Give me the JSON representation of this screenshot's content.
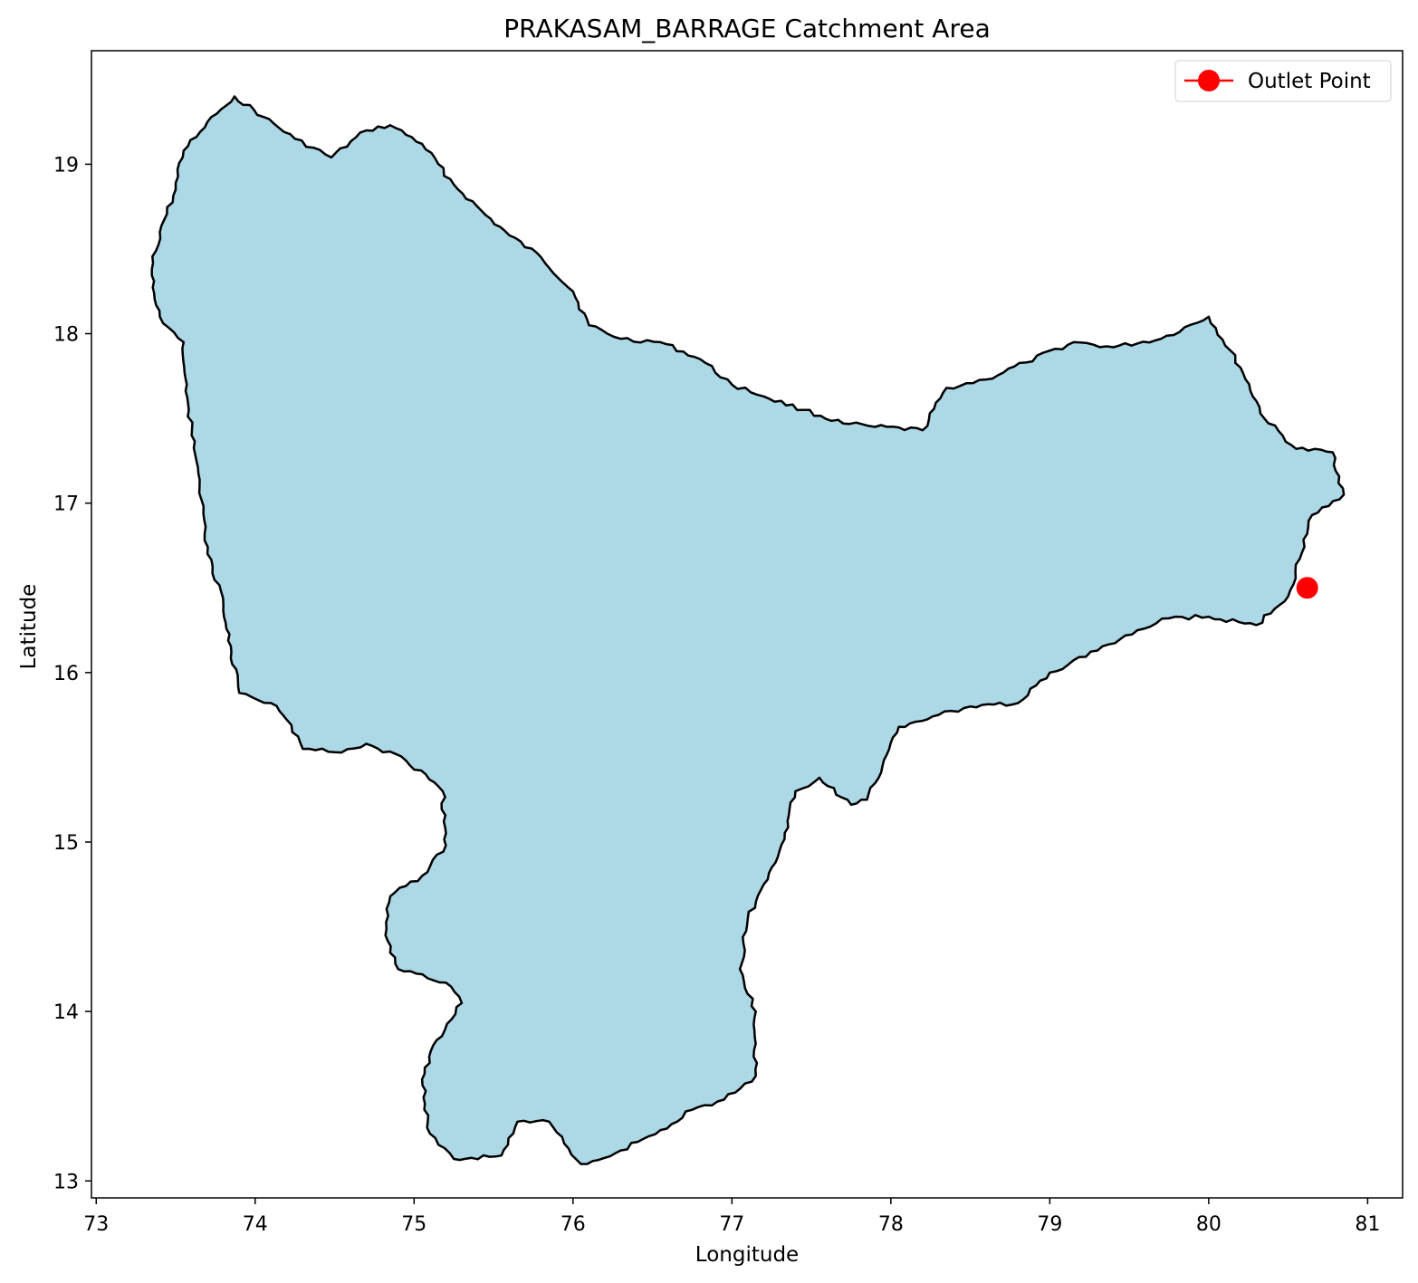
{
  "chart_data": {
    "type": "map",
    "title": "PRAKASAM_BARRAGE Catchment Area",
    "xlabel": "Longitude",
    "ylabel": "Latitude",
    "xlim": [
      72.97,
      81.22
    ],
    "ylim": [
      12.9,
      19.67
    ],
    "x_ticks": [
      73,
      74,
      75,
      76,
      77,
      78,
      79,
      80,
      81
    ],
    "y_ticks": [
      13,
      14,
      15,
      16,
      17,
      18,
      19
    ],
    "grid": false,
    "legend_position": "top-right",
    "colors": {
      "catchment_fill": "#add8e6",
      "catchment_edge": "#000000",
      "outlet": "#ff0000"
    },
    "outlet": {
      "name": "Outlet Point",
      "lon": 80.62,
      "lat": 16.5
    },
    "catchment_boundary": [
      [
        73.87,
        19.4
      ],
      [
        74.05,
        19.28
      ],
      [
        74.25,
        19.15
      ],
      [
        74.48,
        19.04
      ],
      [
        74.7,
        19.2
      ],
      [
        74.85,
        19.23
      ],
      [
        75.05,
        19.12
      ],
      [
        75.25,
        18.88
      ],
      [
        75.45,
        18.7
      ],
      [
        75.6,
        18.58
      ],
      [
        75.8,
        18.45
      ],
      [
        76.0,
        18.25
      ],
      [
        76.1,
        18.05
      ],
      [
        76.3,
        17.97
      ],
      [
        76.55,
        17.95
      ],
      [
        76.8,
        17.85
      ],
      [
        77.0,
        17.7
      ],
      [
        77.2,
        17.63
      ],
      [
        77.45,
        17.55
      ],
      [
        77.7,
        17.47
      ],
      [
        77.9,
        17.45
      ],
      [
        78.2,
        17.43
      ],
      [
        78.35,
        17.68
      ],
      [
        78.6,
        17.73
      ],
      [
        78.85,
        17.83
      ],
      [
        79.15,
        17.95
      ],
      [
        79.4,
        17.92
      ],
      [
        79.7,
        17.97
      ],
      [
        80.0,
        18.1
      ],
      [
        80.2,
        17.8
      ],
      [
        80.35,
        17.5
      ],
      [
        80.55,
        17.32
      ],
      [
        80.78,
        17.3
      ],
      [
        80.85,
        17.05
      ],
      [
        80.65,
        16.93
      ],
      [
        80.5,
        16.45
      ],
      [
        80.3,
        16.28
      ],
      [
        80.0,
        16.33
      ],
      [
        79.75,
        16.32
      ],
      [
        79.55,
        16.25
      ],
      [
        79.3,
        16.13
      ],
      [
        79.0,
        16.0
      ],
      [
        78.8,
        15.82
      ],
      [
        78.5,
        15.8
      ],
      [
        78.3,
        15.75
      ],
      [
        78.05,
        15.68
      ],
      [
        77.85,
        15.25
      ],
      [
        77.75,
        15.22
      ],
      [
        77.55,
        15.38
      ],
      [
        77.4,
        15.3
      ],
      [
        77.3,
        14.95
      ],
      [
        77.2,
        14.75
      ],
      [
        77.1,
        14.55
      ],
      [
        77.05,
        14.25
      ],
      [
        77.15,
        14.0
      ],
      [
        77.15,
        13.62
      ],
      [
        76.95,
        13.48
      ],
      [
        76.75,
        13.42
      ],
      [
        76.55,
        13.3
      ],
      [
        76.3,
        13.18
      ],
      [
        76.05,
        13.1
      ],
      [
        75.85,
        13.35
      ],
      [
        75.65,
        13.35
      ],
      [
        75.55,
        13.15
      ],
      [
        75.25,
        13.13
      ],
      [
        75.1,
        13.28
      ],
      [
        75.05,
        13.6
      ],
      [
        75.12,
        13.8
      ],
      [
        75.3,
        14.05
      ],
      [
        75.2,
        14.17
      ],
      [
        74.9,
        14.25
      ],
      [
        74.82,
        14.45
      ],
      [
        74.85,
        14.68
      ],
      [
        75.05,
        14.8
      ],
      [
        75.2,
        14.98
      ],
      [
        75.18,
        15.3
      ],
      [
        74.95,
        15.48
      ],
      [
        74.7,
        15.58
      ],
      [
        74.5,
        15.53
      ],
      [
        74.3,
        15.55
      ],
      [
        74.2,
        15.72
      ],
      [
        74.1,
        15.82
      ],
      [
        73.9,
        15.88
      ],
      [
        73.85,
        16.12
      ],
      [
        73.8,
        16.4
      ],
      [
        73.7,
        16.7
      ],
      [
        73.68,
        16.9
      ],
      [
        73.65,
        17.1
      ],
      [
        73.6,
        17.4
      ],
      [
        73.57,
        17.7
      ],
      [
        73.55,
        17.95
      ],
      [
        73.4,
        18.1
      ],
      [
        73.35,
        18.38
      ],
      [
        73.4,
        18.6
      ],
      [
        73.5,
        18.85
      ],
      [
        73.55,
        19.08
      ],
      [
        73.7,
        19.25
      ]
    ]
  }
}
